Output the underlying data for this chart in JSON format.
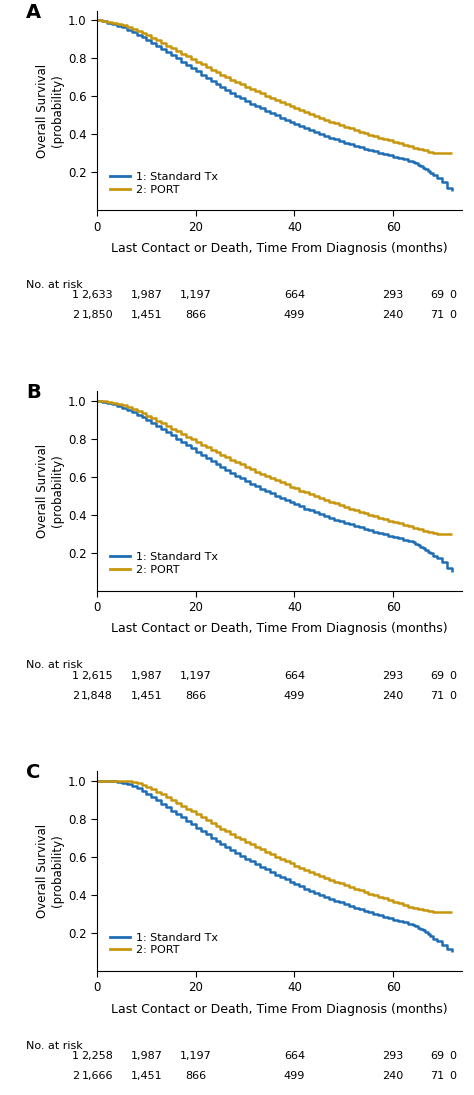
{
  "panels": [
    {
      "label": "A",
      "blue_x": [
        0,
        1,
        2,
        3,
        4,
        5,
        6,
        7,
        8,
        9,
        10,
        11,
        12,
        13,
        14,
        15,
        16,
        17,
        18,
        19,
        20,
        21,
        22,
        23,
        24,
        25,
        26,
        27,
        28,
        29,
        30,
        31,
        32,
        33,
        34,
        35,
        36,
        37,
        38,
        39,
        40,
        41,
        42,
        43,
        44,
        45,
        46,
        47,
        48,
        49,
        50,
        51,
        52,
        53,
        54,
        55,
        56,
        57,
        58,
        59,
        60,
        61,
        62,
        63,
        64,
        64.5,
        65,
        65.5,
        66,
        66.5,
        67,
        67.5,
        68,
        69,
        70,
        71,
        72
      ],
      "blue_y": [
        1.0,
        0.995,
        0.988,
        0.98,
        0.972,
        0.963,
        0.952,
        0.94,
        0.926,
        0.912,
        0.897,
        0.882,
        0.866,
        0.85,
        0.833,
        0.817,
        0.8,
        0.783,
        0.766,
        0.749,
        0.732,
        0.715,
        0.699,
        0.682,
        0.666,
        0.65,
        0.635,
        0.62,
        0.605,
        0.591,
        0.577,
        0.563,
        0.55,
        0.537,
        0.524,
        0.512,
        0.5,
        0.488,
        0.476,
        0.465,
        0.454,
        0.443,
        0.432,
        0.422,
        0.412,
        0.402,
        0.393,
        0.383,
        0.374,
        0.365,
        0.357,
        0.349,
        0.341,
        0.333,
        0.325,
        0.318,
        0.311,
        0.304,
        0.297,
        0.29,
        0.283,
        0.276,
        0.269,
        0.262,
        0.255,
        0.248,
        0.24,
        0.232,
        0.224,
        0.216,
        0.206,
        0.196,
        0.185,
        0.17,
        0.15,
        0.12,
        0.1
      ],
      "gold_x": [
        0,
        1,
        2,
        3,
        4,
        5,
        6,
        7,
        8,
        9,
        10,
        11,
        12,
        13,
        14,
        15,
        16,
        17,
        18,
        19,
        20,
        21,
        22,
        23,
        24,
        25,
        26,
        27,
        28,
        29,
        30,
        31,
        32,
        33,
        34,
        35,
        36,
        37,
        38,
        39,
        40,
        41,
        42,
        43,
        44,
        45,
        46,
        47,
        48,
        49,
        50,
        51,
        52,
        53,
        54,
        55,
        56,
        57,
        58,
        59,
        60,
        61,
        62,
        63,
        64,
        65,
        66,
        67,
        68,
        69,
        70,
        71,
        72
      ],
      "gold_y": [
        1.0,
        0.998,
        0.994,
        0.989,
        0.983,
        0.975,
        0.966,
        0.956,
        0.945,
        0.933,
        0.921,
        0.908,
        0.895,
        0.881,
        0.867,
        0.853,
        0.839,
        0.825,
        0.811,
        0.797,
        0.783,
        0.769,
        0.755,
        0.741,
        0.728,
        0.715,
        0.702,
        0.689,
        0.676,
        0.664,
        0.652,
        0.639,
        0.627,
        0.616,
        0.604,
        0.593,
        0.581,
        0.57,
        0.559,
        0.548,
        0.538,
        0.527,
        0.517,
        0.507,
        0.497,
        0.487,
        0.477,
        0.468,
        0.459,
        0.45,
        0.441,
        0.432,
        0.424,
        0.415,
        0.407,
        0.399,
        0.391,
        0.383,
        0.376,
        0.369,
        0.362,
        0.354,
        0.346,
        0.338,
        0.331,
        0.323,
        0.316,
        0.309,
        0.303,
        0.3,
        0.3,
        0.3,
        0.3
      ],
      "at_risk_row1": [
        "2,633",
        "1,987",
        "1,197",
        "664",
        "293",
        "69",
        "0"
      ],
      "at_risk_row2": [
        "1,850",
        "1,451",
        "866",
        "499",
        "240",
        "71",
        "0"
      ]
    },
    {
      "label": "B",
      "blue_x": [
        0,
        1,
        2,
        3,
        4,
        5,
        6,
        7,
        8,
        9,
        10,
        11,
        12,
        13,
        14,
        15,
        16,
        17,
        18,
        19,
        20,
        21,
        22,
        23,
        24,
        25,
        26,
        27,
        28,
        29,
        30,
        31,
        32,
        33,
        34,
        35,
        36,
        37,
        38,
        39,
        40,
        41,
        42,
        43,
        44,
        45,
        46,
        47,
        48,
        49,
        50,
        51,
        52,
        53,
        54,
        55,
        56,
        57,
        58,
        59,
        60,
        61,
        62,
        63,
        64,
        64.5,
        65,
        65.5,
        66,
        66.5,
        67,
        67.5,
        68,
        69,
        70,
        71,
        72
      ],
      "blue_y": [
        1.0,
        0.995,
        0.988,
        0.98,
        0.972,
        0.963,
        0.952,
        0.94,
        0.926,
        0.912,
        0.897,
        0.882,
        0.866,
        0.85,
        0.833,
        0.817,
        0.8,
        0.783,
        0.766,
        0.749,
        0.732,
        0.715,
        0.699,
        0.682,
        0.666,
        0.65,
        0.635,
        0.62,
        0.605,
        0.591,
        0.577,
        0.563,
        0.55,
        0.537,
        0.524,
        0.512,
        0.5,
        0.488,
        0.476,
        0.465,
        0.454,
        0.443,
        0.432,
        0.422,
        0.412,
        0.402,
        0.393,
        0.383,
        0.374,
        0.365,
        0.357,
        0.349,
        0.341,
        0.333,
        0.325,
        0.318,
        0.311,
        0.304,
        0.297,
        0.29,
        0.283,
        0.276,
        0.269,
        0.262,
        0.255,
        0.248,
        0.24,
        0.232,
        0.224,
        0.216,
        0.206,
        0.196,
        0.185,
        0.17,
        0.15,
        0.12,
        0.1
      ],
      "gold_x": [
        0,
        1,
        2,
        3,
        4,
        5,
        6,
        7,
        8,
        9,
        10,
        11,
        12,
        13,
        14,
        15,
        16,
        17,
        18,
        19,
        20,
        21,
        22,
        23,
        24,
        25,
        26,
        27,
        28,
        29,
        30,
        31,
        32,
        33,
        34,
        35,
        36,
        37,
        38,
        39,
        40,
        41,
        42,
        43,
        44,
        45,
        46,
        47,
        48,
        49,
        50,
        51,
        52,
        53,
        54,
        55,
        56,
        57,
        58,
        59,
        60,
        61,
        62,
        63,
        64,
        65,
        66,
        67,
        68,
        69,
        70,
        71,
        72
      ],
      "gold_y": [
        1.0,
        0.998,
        0.994,
        0.989,
        0.983,
        0.975,
        0.966,
        0.956,
        0.945,
        0.933,
        0.921,
        0.908,
        0.895,
        0.881,
        0.867,
        0.853,
        0.839,
        0.825,
        0.811,
        0.797,
        0.783,
        0.769,
        0.755,
        0.741,
        0.728,
        0.715,
        0.702,
        0.689,
        0.676,
        0.664,
        0.652,
        0.639,
        0.627,
        0.616,
        0.604,
        0.593,
        0.581,
        0.57,
        0.559,
        0.548,
        0.538,
        0.527,
        0.517,
        0.507,
        0.497,
        0.487,
        0.477,
        0.468,
        0.459,
        0.45,
        0.441,
        0.432,
        0.424,
        0.415,
        0.407,
        0.399,
        0.391,
        0.383,
        0.376,
        0.369,
        0.362,
        0.354,
        0.346,
        0.338,
        0.331,
        0.323,
        0.316,
        0.309,
        0.303,
        0.3,
        0.3,
        0.3,
        0.3
      ],
      "at_risk_row1": [
        "2,615",
        "1,987",
        "1,197",
        "664",
        "293",
        "69",
        "0"
      ],
      "at_risk_row2": [
        "1,848",
        "1,451",
        "866",
        "499",
        "240",
        "71",
        "0"
      ]
    },
    {
      "label": "C",
      "blue_x": [
        0,
        1,
        2,
        3,
        4,
        5,
        6,
        7,
        8,
        9,
        10,
        11,
        12,
        13,
        14,
        15,
        16,
        17,
        18,
        19,
        20,
        21,
        22,
        23,
        24,
        25,
        26,
        27,
        28,
        29,
        30,
        31,
        32,
        33,
        34,
        35,
        36,
        37,
        38,
        39,
        40,
        41,
        42,
        43,
        44,
        45,
        46,
        47,
        48,
        49,
        50,
        51,
        52,
        53,
        54,
        55,
        56,
        57,
        58,
        59,
        60,
        61,
        62,
        63,
        64,
        64.5,
        65,
        65.5,
        66,
        66.5,
        67,
        67.5,
        68,
        69,
        70,
        71,
        72
      ],
      "blue_y": [
        1.0,
        1.0,
        1.0,
        0.998,
        0.995,
        0.99,
        0.983,
        0.973,
        0.962,
        0.948,
        0.932,
        0.915,
        0.897,
        0.879,
        0.861,
        0.843,
        0.825,
        0.807,
        0.789,
        0.771,
        0.753,
        0.736,
        0.718,
        0.701,
        0.685,
        0.668,
        0.652,
        0.637,
        0.621,
        0.606,
        0.591,
        0.577,
        0.562,
        0.548,
        0.534,
        0.521,
        0.507,
        0.494,
        0.481,
        0.469,
        0.457,
        0.445,
        0.433,
        0.422,
        0.411,
        0.4,
        0.39,
        0.38,
        0.37,
        0.36,
        0.351,
        0.342,
        0.333,
        0.324,
        0.316,
        0.308,
        0.3,
        0.292,
        0.285,
        0.278,
        0.27,
        0.263,
        0.256,
        0.249,
        0.242,
        0.235,
        0.228,
        0.221,
        0.214,
        0.207,
        0.196,
        0.184,
        0.17,
        0.155,
        0.135,
        0.115,
        0.1
      ],
      "gold_x": [
        0,
        1,
        2,
        3,
        4,
        5,
        6,
        7,
        8,
        9,
        10,
        11,
        12,
        13,
        14,
        15,
        16,
        17,
        18,
        19,
        20,
        21,
        22,
        23,
        24,
        25,
        26,
        27,
        28,
        29,
        30,
        31,
        32,
        33,
        34,
        35,
        36,
        37,
        38,
        39,
        40,
        41,
        42,
        43,
        44,
        45,
        46,
        47,
        48,
        49,
        50,
        51,
        52,
        53,
        54,
        55,
        56,
        57,
        58,
        59,
        60,
        61,
        62,
        63,
        64,
        65,
        66,
        67,
        68,
        69,
        70,
        71,
        72
      ],
      "gold_y": [
        1.0,
        1.0,
        1.0,
        1.0,
        1.0,
        0.999,
        0.997,
        0.993,
        0.987,
        0.979,
        0.968,
        0.956,
        0.943,
        0.929,
        0.915,
        0.9,
        0.885,
        0.869,
        0.854,
        0.839,
        0.823,
        0.808,
        0.793,
        0.778,
        0.763,
        0.749,
        0.734,
        0.72,
        0.706,
        0.692,
        0.679,
        0.665,
        0.652,
        0.639,
        0.626,
        0.614,
        0.601,
        0.589,
        0.577,
        0.565,
        0.554,
        0.542,
        0.531,
        0.52,
        0.51,
        0.499,
        0.489,
        0.479,
        0.469,
        0.46,
        0.45,
        0.441,
        0.432,
        0.423,
        0.414,
        0.406,
        0.398,
        0.39,
        0.382,
        0.374,
        0.365,
        0.356,
        0.347,
        0.338,
        0.332,
        0.325,
        0.32,
        0.315,
        0.312,
        0.31,
        0.31,
        0.31,
        0.31
      ],
      "at_risk_row1": [
        "2,258",
        "1,987",
        "1,197",
        "664",
        "293",
        "69",
        "0"
      ],
      "at_risk_row2": [
        "1,666",
        "1,451",
        "866",
        "499",
        "240",
        "71",
        "0"
      ]
    }
  ],
  "blue_color": "#1f6eb5",
  "gold_color": "#c8960c",
  "legend_labels": [
    "1: Standard Tx",
    "2: PORT"
  ],
  "ylabel": "Overall Survival\n(probability)",
  "xlabel": "Last Contact or Death, Time From Diagnosis (months)",
  "xlim": [
    0,
    74
  ],
  "ylim": [
    0.0,
    1.05
  ],
  "xticks": [
    0,
    20,
    40,
    60
  ],
  "yticks": [
    0.2,
    0.4,
    0.6,
    0.8,
    1.0
  ],
  "at_risk_times": [
    0,
    10,
    20,
    40,
    60,
    69,
    72
  ],
  "at_risk_label": "No. at risk"
}
